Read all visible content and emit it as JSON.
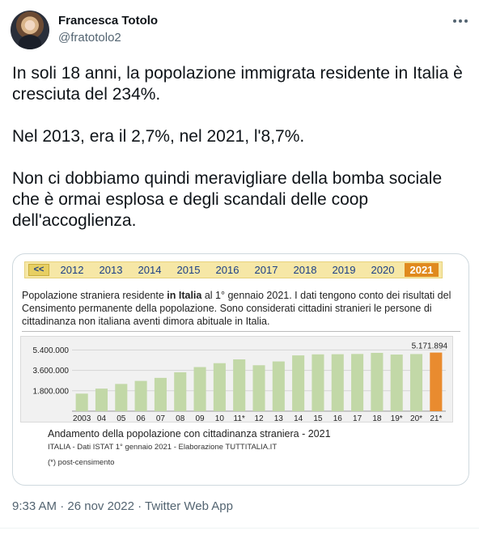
{
  "author": {
    "name": "Francesca Totolo",
    "handle": "@fratotolo2"
  },
  "tweet": {
    "text": "In soli 18 anni, la popolazione immigrata residente in Italia è cresciuta del 234%.\n\nNel 2013, era il 2,7%, nel 2021, l'8,7%.\n\nNon ci dobbiamo quindi meravigliare della bomba sociale che è ormai esplosa e degli scandali delle coop dell'accoglienza."
  },
  "card": {
    "nav": {
      "prev_label": "<<",
      "years": [
        "2012",
        "2013",
        "2014",
        "2015",
        "2016",
        "2017",
        "2018",
        "2019",
        "2020"
      ],
      "active_year": "2021"
    },
    "description_pre": "Popolazione straniera residente ",
    "description_bold": "in Italia",
    "description_post": " al 1° gennaio 2021. I dati tengono conto dei risultati del Censimento permanente della popolazione. Sono considerati cittadini stranieri le persone di cittadinanza non italiana aventi dimora abituale in Italia.",
    "caption_title": "Andamento della popolazione con cittadinanza straniera - 2021",
    "caption_source": "ITALIA - Dati ISTAT 1° gennaio 2021 - Elaborazione TUTTITALIA.IT",
    "caption_note": "(*) post-censimento"
  },
  "chart_data": {
    "type": "bar",
    "categories": [
      "2003",
      "04",
      "05",
      "06",
      "07",
      "08",
      "09",
      "10",
      "11*",
      "12",
      "13",
      "14",
      "15",
      "16",
      "17",
      "18",
      "19*",
      "20*",
      "21*"
    ],
    "values": [
      1549373,
      1990159,
      2402157,
      2670514,
      2938922,
      3432651,
      3891295,
      4235059,
      4570317,
      4052081,
      4387721,
      4922085,
      5014437,
      5026153,
      5047028,
      5144440,
      4996158,
      5039637,
      5171894
    ],
    "yticks": [
      "5.400.000",
      "3.600.000",
      "1.800.000"
    ],
    "ytick_values": [
      5400000,
      3600000,
      1800000
    ],
    "ylim": [
      0,
      6000000
    ],
    "highlight_label": "5.171.894",
    "colors": {
      "bar": "#c2d8a7",
      "highlight": "#e98b2f"
    },
    "grid": true
  },
  "meta": {
    "time": "9:33 AM",
    "date": "26 nov 2022",
    "source": "Twitter Web App",
    "separator": " · "
  }
}
